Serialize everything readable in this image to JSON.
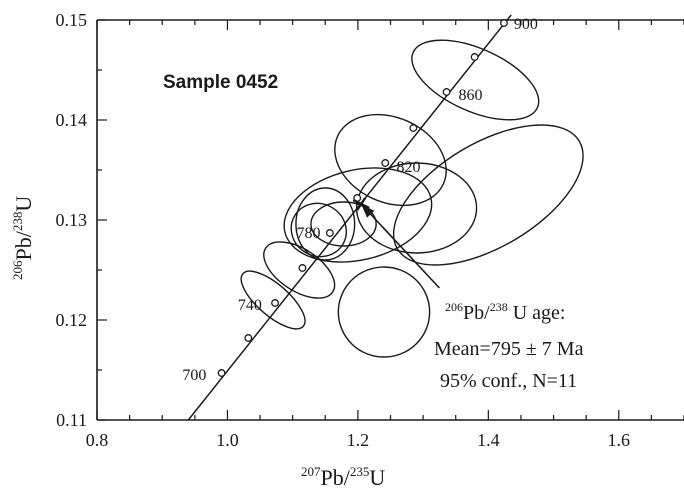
{
  "chart_data": {
    "type": "scatter",
    "title": "",
    "xlim": [
      0.8,
      1.7
    ],
    "ylim": [
      0.11,
      0.15
    ],
    "x_ticks": [
      "0.8",
      "1.0",
      "1.2",
      "1.4",
      "1.6"
    ],
    "y_ticks": [
      "0.11",
      "0.12",
      "0.13",
      "0.14",
      "0.15"
    ],
    "xlabel": {
      "mass": "207",
      "element": "Pb",
      "slash": "/",
      "mass2": "235",
      "element2": "U"
    },
    "ylabel": {
      "mass": "206",
      "element": "Pb",
      "slash": "/",
      "mass2": "238",
      "element2": "U"
    },
    "sample_label": "Sample 0452",
    "concordia": {
      "line": [
        [
          0.94,
          0.11
        ],
        [
          1.435,
          0.1505
        ]
      ],
      "markers": [
        {
          "x": 0.991,
          "y": 0.1147
        },
        {
          "x": 1.032,
          "y": 0.1182
        },
        {
          "x": 1.073,
          "y": 0.1217
        },
        {
          "x": 1.115,
          "y": 0.1252
        },
        {
          "x": 1.157,
          "y": 0.1287
        },
        {
          "x": 1.199,
          "y": 0.1322
        },
        {
          "x": 1.242,
          "y": 0.1357
        },
        {
          "x": 1.285,
          "y": 0.1392
        },
        {
          "x": 1.336,
          "y": 0.1428
        },
        {
          "x": 1.379,
          "y": 0.1463
        },
        {
          "x": 1.424,
          "y": 0.1497
        }
      ],
      "age_labels": [
        {
          "text": "700",
          "x": 0.98,
          "y": 0.1146
        },
        {
          "text": "740",
          "x": 1.065,
          "y": 0.1216
        },
        {
          "text": "780",
          "x": 1.155,
          "y": 0.1288
        },
        {
          "text": "820",
          "x": 1.25,
          "y": 0.1354
        },
        {
          "text": "860",
          "x": 1.345,
          "y": 0.1426
        },
        {
          "text": "900",
          "x": 1.43,
          "y": 0.1497
        }
      ]
    },
    "ellipses": [
      {
        "cx": 1.38,
        "cy": 0.144,
        "rx": 0.048,
        "ry": 0.0068,
        "angle": 0.1467
      },
      {
        "cx": 1.25,
        "cy": 0.136,
        "rx": 0.065,
        "ry": 0.0058,
        "angle": 0.1455
      },
      {
        "cx": 1.4,
        "cy": 0.1325,
        "rx": 0.162,
        "ry": 0.0052,
        "angle": 0.0386
      },
      {
        "cx": 1.2,
        "cy": 0.1305,
        "rx": 0.115,
        "ry": 0.0045,
        "angle": 0.0152
      },
      {
        "cx": 1.29,
        "cy": 0.1312,
        "rx": 0.092,
        "ry": 0.0045,
        "angle": 0.0
      },
      {
        "cx": 1.178,
        "cy": 0.1296,
        "rx": 0.05,
        "ry": 0.0022,
        "angle": 0.0
      },
      {
        "cx": 1.14,
        "cy": 0.129,
        "rx": 0.04,
        "ry": 0.0028,
        "angle": 0.11
      },
      {
        "cx": 1.15,
        "cy": 0.1296,
        "rx": 0.045,
        "ry": 0.0036,
        "angle": 0.0
      },
      {
        "cx": 1.11,
        "cy": 0.125,
        "rx": 0.032,
        "ry": 0.004,
        "angle": 0.0992
      },
      {
        "cx": 1.07,
        "cy": 0.122,
        "rx": 0.024,
        "ry": 0.004,
        "angle": 0.0749
      },
      {
        "cx": 1.24,
        "cy": 0.1208,
        "rx": 0.07,
        "ry": 0.0045,
        "angle": 0.0
      }
    ],
    "mean_marker": {
      "x": 1.205,
      "y": 0.1316
    },
    "annotation": {
      "line1_mass": "206",
      "line1_element": "Pb/",
      "line1_mass2": "238",
      "line1_rest": " U age:",
      "line2": "Mean=795 ±  7 Ma",
      "line3": "95% conf., N=11",
      "arrow_from": {
        "x": 1.325,
        "y": 0.1232
      },
      "arrow_to": {
        "x": 1.205,
        "y": 0.1316
      }
    }
  }
}
